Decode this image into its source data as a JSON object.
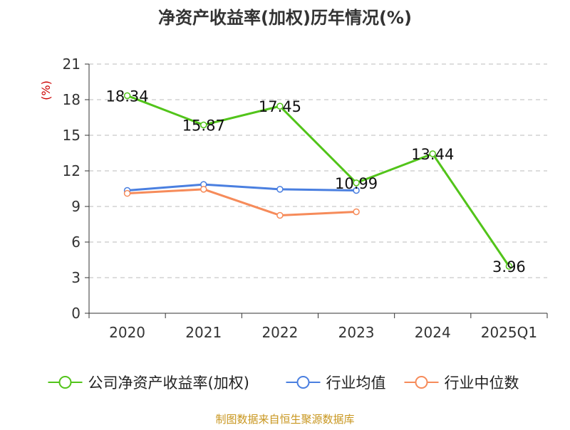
{
  "chart_data": {
    "type": "line",
    "title": "净资产收益率(加权)历年情况(%)",
    "ylabel": "(%)",
    "ylim": [
      0,
      21
    ],
    "yticks": [
      0,
      3,
      6,
      9,
      12,
      15,
      18,
      21
    ],
    "categories": [
      "2020",
      "2021",
      "2022",
      "2023",
      "2024",
      "2025Q1"
    ],
    "grid": true,
    "legend_position": "bottom",
    "series": [
      {
        "name": "公司净资产收益率(加权)",
        "color": "#52c41a",
        "values": [
          18.34,
          15.87,
          17.45,
          10.99,
          13.44,
          3.96
        ],
        "labels": [
          "18.34",
          "15.87",
          "17.45",
          "10.99",
          "13.44",
          "3.96"
        ]
      },
      {
        "name": "行业均值",
        "color": "#4a7fe0",
        "values": [
          10.35,
          10.85,
          10.45,
          10.35,
          null,
          null
        ]
      },
      {
        "name": "行业中位数",
        "color": "#f68b5a",
        "values": [
          10.1,
          10.45,
          8.25,
          8.55,
          null,
          null
        ]
      }
    ],
    "source": "制图数据来自恒生聚源数据库"
  },
  "colors": {
    "axis": "#333333",
    "grid": "#bbbbbb",
    "ylabel": "#cc0000",
    "source": "#c8961e"
  }
}
